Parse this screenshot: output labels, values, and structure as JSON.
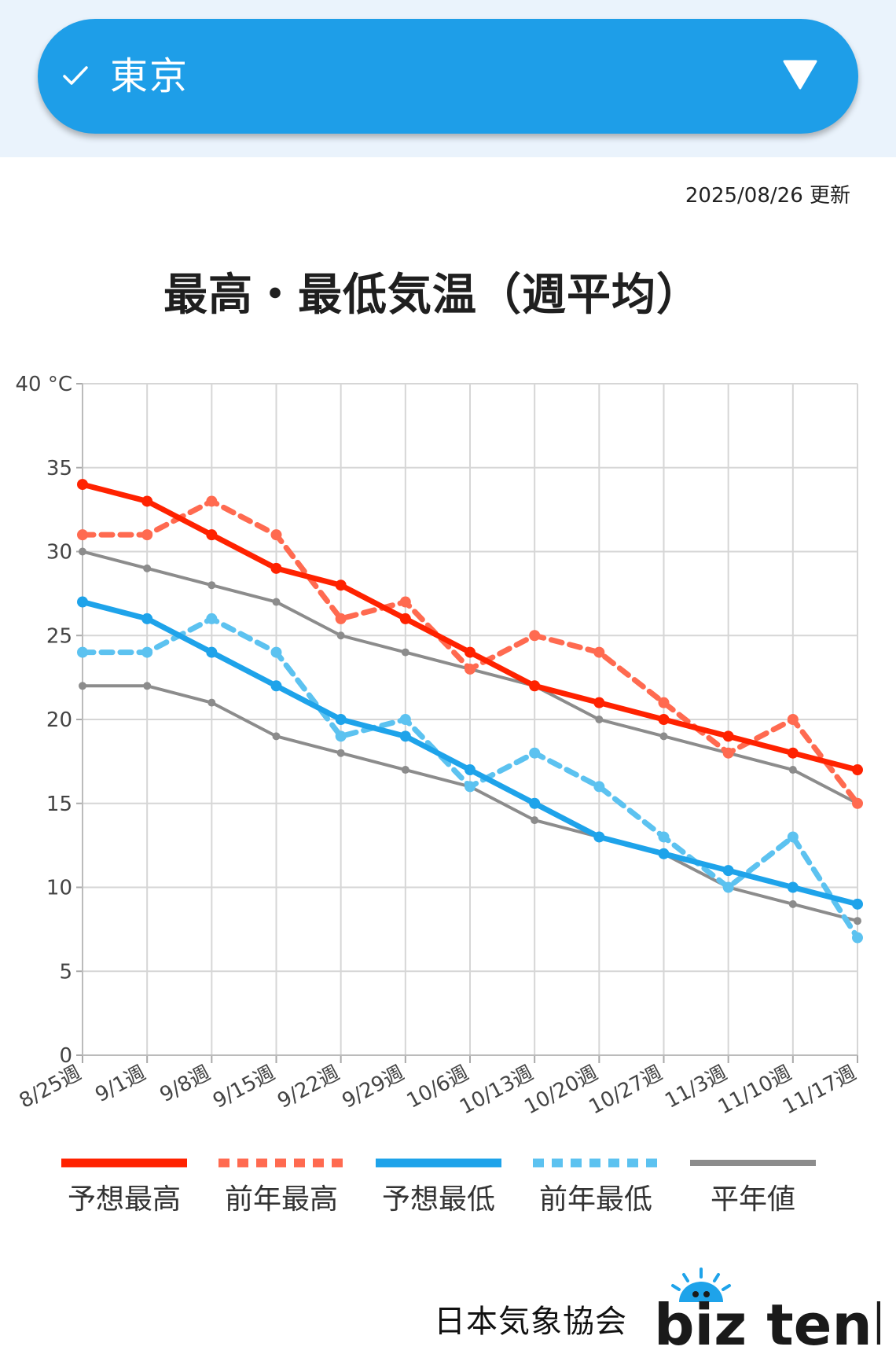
{
  "header": {
    "location": "東京",
    "check_icon": "check-icon",
    "dropdown_icon": "triangle-down-icon"
  },
  "updated": "2025/08/26 更新",
  "chart_data": {
    "type": "line",
    "title": "最高・最低気温（週平均）",
    "y_unit": "°C",
    "ylim": [
      0,
      40
    ],
    "yticks": [
      "0",
      "5",
      "10",
      "15",
      "20",
      "25",
      "30",
      "35",
      "40"
    ],
    "grid": true,
    "legend_position": "bottom",
    "categories": [
      "8/25週",
      "9/1週",
      "9/8週",
      "9/15週",
      "9/22週",
      "9/29週",
      "10/6週",
      "10/13週",
      "10/20週",
      "10/27週",
      "11/3週",
      "11/10週",
      "11/17週"
    ],
    "series": [
      {
        "name": "予想最高",
        "color": "#ff2200",
        "style": "solid",
        "values": [
          34,
          33,
          31,
          29,
          28,
          26,
          24,
          22,
          21,
          20,
          19,
          18,
          17
        ]
      },
      {
        "name": "前年最高",
        "color": "#ff6a50",
        "style": "dashed",
        "values": [
          31,
          31,
          33,
          31,
          26,
          27,
          23,
          25,
          24,
          21,
          18,
          20,
          15
        ]
      },
      {
        "name": "予想最低",
        "color": "#1ea3ea",
        "style": "solid",
        "values": [
          27,
          26,
          24,
          22,
          20,
          19,
          17,
          15,
          13,
          12,
          11,
          10,
          9
        ]
      },
      {
        "name": "前年最低",
        "color": "#5cc2f0",
        "style": "dashed",
        "values": [
          24,
          24,
          26,
          24,
          19,
          20,
          16,
          18,
          16,
          13,
          10,
          13,
          7
        ]
      },
      {
        "name": "平年値",
        "color": "#8c8c8c",
        "style": "thin",
        "values": [
          30,
          29,
          28,
          27,
          25,
          24,
          23,
          22,
          20,
          19,
          18,
          17,
          15
        ]
      },
      {
        "name": "平年値",
        "color": "#8c8c8c",
        "style": "thin",
        "values": [
          22,
          22,
          21,
          19,
          18,
          17,
          16,
          14,
          13,
          12,
          10,
          9,
          8
        ]
      }
    ]
  },
  "legend": [
    {
      "label": "予想最高",
      "color": "#ff2200",
      "style": "solid"
    },
    {
      "label": "前年最高",
      "color": "#ff6a50",
      "style": "dashed"
    },
    {
      "label": "予想最低",
      "color": "#1ea3ea",
      "style": "solid"
    },
    {
      "label": "前年最低",
      "color": "#5cc2f0",
      "style": "dashed"
    },
    {
      "label": "平年値",
      "color": "#8c8c8c",
      "style": "solid"
    }
  ],
  "footer": {
    "organization": "日本気象協会",
    "brand": "biz tenki"
  }
}
